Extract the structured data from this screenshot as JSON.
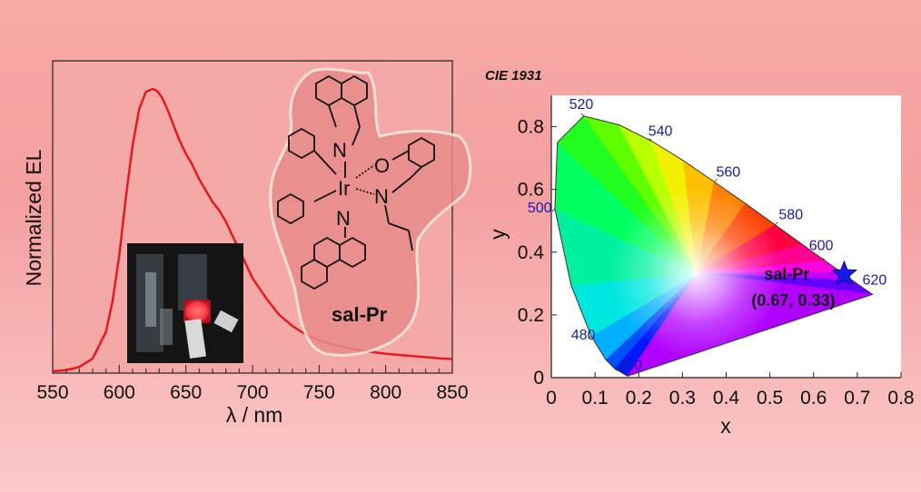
{
  "chart_data": [
    {
      "type": "line",
      "xlabel": "λ / nm",
      "ylabel": "Normalized EL",
      "xlim": [
        550,
        850
      ],
      "ylim": [
        0,
        1.0
      ],
      "xticks": [
        550,
        600,
        650,
        700,
        750,
        800,
        850
      ],
      "series": [
        {
          "color": "#e8141c",
          "x": [
            550,
            560,
            570,
            580,
            590,
            595,
            600,
            605,
            610,
            615,
            620,
            625,
            628,
            632,
            636,
            640,
            645,
            650,
            655,
            660,
            665,
            670,
            675,
            680,
            685,
            690,
            695,
            700,
            710,
            720,
            730,
            740,
            750,
            760,
            770,
            780,
            790,
            800,
            810,
            820,
            830,
            840,
            850
          ],
          "y": [
            0.0,
            0.004,
            0.015,
            0.045,
            0.14,
            0.25,
            0.41,
            0.62,
            0.8,
            0.93,
            0.99,
            1.0,
            0.995,
            0.97,
            0.93,
            0.88,
            0.82,
            0.77,
            0.73,
            0.68,
            0.64,
            0.6,
            0.57,
            0.53,
            0.48,
            0.43,
            0.38,
            0.33,
            0.26,
            0.2,
            0.16,
            0.13,
            0.11,
            0.095,
            0.085,
            0.075,
            0.068,
            0.062,
            0.058,
            0.054,
            0.05,
            0.046,
            0.043
          ]
        }
      ]
    },
    {
      "type": "scatter",
      "title": "CIE 1931",
      "xlabel": "x",
      "ylabel": "y",
      "xlim": [
        0,
        0.8
      ],
      "ylim": [
        0,
        0.9
      ],
      "xticks": [
        0,
        0.1,
        0.2,
        0.3,
        0.4,
        0.5,
        0.6,
        0.7,
        0.8
      ],
      "yticks": [
        0,
        0.2,
        0.4,
        0.6,
        0.8
      ],
      "wavelength_labels": [
        {
          "text": "460",
          "x": 0.144,
          "y": 0.03
        },
        {
          "text": "480",
          "x": 0.091,
          "y": 0.133
        },
        {
          "text": "500",
          "x": 0.008,
          "y": 0.538
        },
        {
          "text": "520",
          "x": 0.074,
          "y": 0.834
        },
        {
          "text": "540",
          "x": 0.23,
          "y": 0.754
        },
        {
          "text": "560",
          "x": 0.373,
          "y": 0.624
        },
        {
          "text": "580",
          "x": 0.512,
          "y": 0.487
        },
        {
          "text": "600",
          "x": 0.627,
          "y": 0.372
        },
        {
          "text": "620",
          "x": 0.691,
          "y": 0.308
        }
      ],
      "point": {
        "name": "sal-Pr",
        "x": 0.67,
        "y": 0.33,
        "coords_label": "(0.67, 0.33)",
        "marker": "star",
        "color": "#1a1aee"
      }
    }
  ],
  "molecule": {
    "name": "sal-Pr",
    "atoms": [
      "N",
      "N",
      "Ir",
      "O",
      "N"
    ]
  },
  "inset_photo": {
    "description_icon": "device-photo-icon"
  }
}
